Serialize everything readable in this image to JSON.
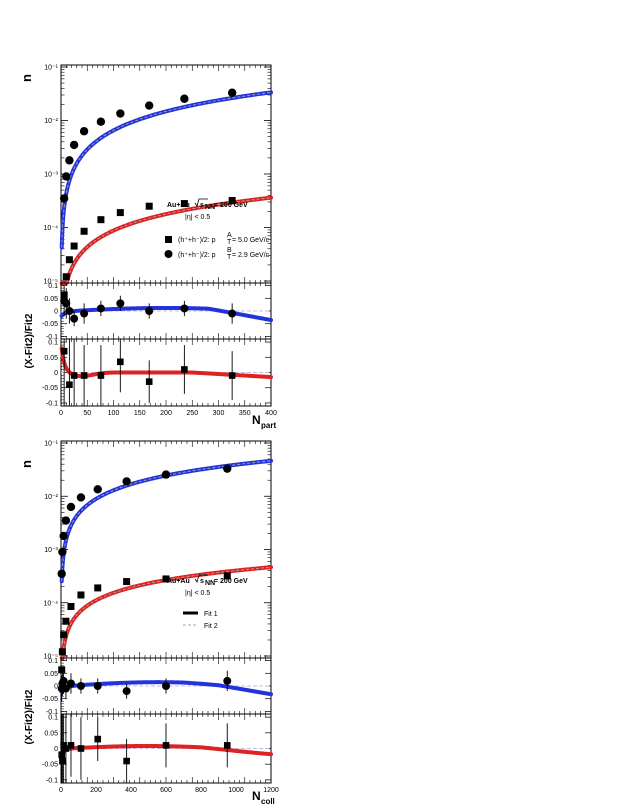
{
  "colors": {
    "blue_fit": "#2233dd",
    "red_fit": "#dd2222",
    "fit2_dash": "#aaaaaa",
    "ref_line": "#c8b8e0",
    "marker": "#000000"
  },
  "legend": {
    "system": "Au+Au",
    "energy": "s",
    "energy_sub": "NN",
    "energy_value": "= 200 GeV",
    "eta_cut": "|η| < 0.5",
    "series_square": "(h⁺+h⁻)/2: p",
    "series_square_sup": "A",
    "series_square_sub": "T",
    "series_square_value": "= 5.0 GeV/c",
    "series_circle": "(h⁺+h⁻)/2: p",
    "series_circle_sup": "B",
    "series_circle_sub": "T",
    "series_circle_value": "= 2.9 GeV/c",
    "fit1": "Fit 1",
    "fit2": "Fit 2"
  },
  "chart_data": [
    {
      "id": "top-main",
      "type": "scatter",
      "ylabel": "n",
      "xlim": [
        0,
        400
      ],
      "ylog": true,
      "ylim_exp": [
        -5,
        -1
      ],
      "ytick_labels": [
        "10⁻¹",
        "10⁻²",
        "10⁻³",
        "10⁻⁴",
        "10⁻⁵"
      ],
      "series": [
        {
          "marker": "circle",
          "fit_color": "blue",
          "x": [
            6,
            10,
            16,
            25,
            44,
            76,
            113,
            168,
            235,
            326
          ],
          "y": [
            0.00035,
            0.0009,
            0.0018,
            0.0035,
            0.0063,
            0.0095,
            0.0135,
            0.019,
            0.0255,
            0.033
          ],
          "fit": {
            "a": 2.85e-05,
            "b": 1.18
          }
        },
        {
          "marker": "square",
          "fit_color": "red",
          "x": [
            6,
            10,
            16,
            25,
            44,
            76,
            113,
            168,
            235,
            326
          ],
          "y": [
            5.5e-06,
            1.2e-05,
            2.5e-05,
            4.5e-05,
            8.5e-05,
            0.00014,
            0.00019,
            0.00025,
            0.00028,
            0.00032
          ],
          "fit": {
            "a": 8e-07,
            "b": 1.02
          }
        }
      ]
    },
    {
      "id": "top-ratio-blue",
      "type": "scatter",
      "ylabel": "(X-Fit2)/Fit2",
      "xlim": [
        0,
        400
      ],
      "ylim": [
        -0.11,
        0.11
      ],
      "ytick_labels": [
        "0.1",
        "0.05",
        "0",
        "-0.05",
        "-0.1"
      ],
      "x": [
        6,
        10,
        16,
        25,
        44,
        76,
        113,
        168,
        235,
        326
      ],
      "y": [
        0.04,
        0.03,
        0.0,
        -0.03,
        -0.01,
        0.01,
        0.03,
        0.0,
        0.01,
        -0.01
      ],
      "err": [
        0.06,
        0.06,
        0.05,
        0.03,
        0.04,
        0.03,
        0.03,
        0.03,
        0.03,
        0.04
      ]
    },
    {
      "id": "top-ratio-red",
      "type": "scatter",
      "xlim": [
        0,
        400
      ],
      "ylim": [
        -0.11,
        0.11
      ],
      "ytick_labels": [
        "0.1",
        "0.05",
        "0",
        "-0.05",
        "-0.1"
      ],
      "xticks": [
        0,
        50,
        100,
        150,
        200,
        250,
        300,
        350,
        400
      ],
      "xtick_labels": [
        "0",
        "50",
        "100",
        "150",
        "200",
        "250",
        "300",
        "350",
        "400"
      ],
      "xlabel": "N",
      "xlabel_sub": "part",
      "x": [
        6,
        16,
        25,
        44,
        76,
        113,
        168,
        235,
        326
      ],
      "y": [
        0.07,
        -0.04,
        -0.01,
        -0.01,
        -0.01,
        0.035,
        -0.03,
        0.01,
        -0.01
      ],
      "err": [
        0.2,
        0.2,
        0.15,
        0.1,
        0.1,
        0.1,
        0.07,
        0.08,
        0.08
      ]
    },
    {
      "id": "bottom-main",
      "type": "scatter",
      "ylabel": "n",
      "xlim": [
        0,
        1200
      ],
      "ylog": true,
      "ylim_exp": [
        -5,
        -1
      ],
      "ytick_labels": [
        "10⁻¹",
        "10⁻²",
        "10⁻³",
        "10⁻⁴",
        "10⁻⁵"
      ],
      "series": [
        {
          "marker": "circle",
          "fit_color": "blue",
          "x": [
            4,
            8,
            15,
            28,
            57,
            114,
            210,
            375,
            600,
            950
          ],
          "y": [
            0.00035,
            0.0009,
            0.0018,
            0.0035,
            0.0063,
            0.0095,
            0.0135,
            0.019,
            0.0255,
            0.033
          ],
          "fit": {
            "a": 6.8e-05,
            "b": 0.92
          }
        },
        {
          "marker": "square",
          "fit_color": "red",
          "x": [
            4,
            8,
            15,
            28,
            57,
            114,
            210,
            375,
            600,
            950
          ],
          "y": [
            5.5e-06,
            1.2e-05,
            2.5e-05,
            4.5e-05,
            8.5e-05,
            0.00014,
            0.00019,
            0.00025,
            0.00028,
            0.00032
          ],
          "fit": {
            "a": 1.6e-06,
            "b": 0.8
          }
        }
      ]
    },
    {
      "id": "bottom-ratio-blue",
      "type": "scatter",
      "ylabel": "(X-Fit2)/Fit2",
      "xlim": [
        0,
        1200
      ],
      "ylim": [
        -0.11,
        0.11
      ],
      "ytick_labels": [
        "0.1",
        "0.05",
        "0",
        "-0.05",
        "-0.1"
      ],
      "x": [
        4,
        8,
        15,
        28,
        57,
        114,
        210,
        375,
        600,
        950
      ],
      "y": [
        -0.01,
        0.01,
        0.02,
        -0.01,
        0.01,
        0.0,
        0.0,
        -0.02,
        0.0,
        0.02
      ],
      "err": [
        0.05,
        0.05,
        0.05,
        0.04,
        0.04,
        0.03,
        0.03,
        0.03,
        0.03,
        0.04
      ]
    },
    {
      "id": "bottom-ratio-red",
      "type": "scatter",
      "xlim": [
        0,
        1200
      ],
      "ylim": [
        -0.11,
        0.11
      ],
      "ytick_labels": [
        "0.1",
        "0.05",
        "0",
        "-0.05",
        "-0.1"
      ],
      "xticks": [
        0,
        200,
        400,
        600,
        800,
        1000,
        1200
      ],
      "xtick_labels": [
        "0",
        "200",
        "400",
        "600",
        "800",
        "1000",
        "1200"
      ],
      "xlabel": "N",
      "xlabel_sub": "coll",
      "x": [
        4,
        8,
        15,
        28,
        57,
        114,
        210,
        375,
        600,
        950
      ],
      "y": [
        -0.02,
        -0.04,
        0.01,
        0.0,
        0.01,
        0.0,
        0.03,
        -0.04,
        0.01,
        0.01
      ],
      "err": [
        0.2,
        0.2,
        0.15,
        0.12,
        0.1,
        0.1,
        0.07,
        0.07,
        0.07,
        0.07
      ]
    }
  ]
}
